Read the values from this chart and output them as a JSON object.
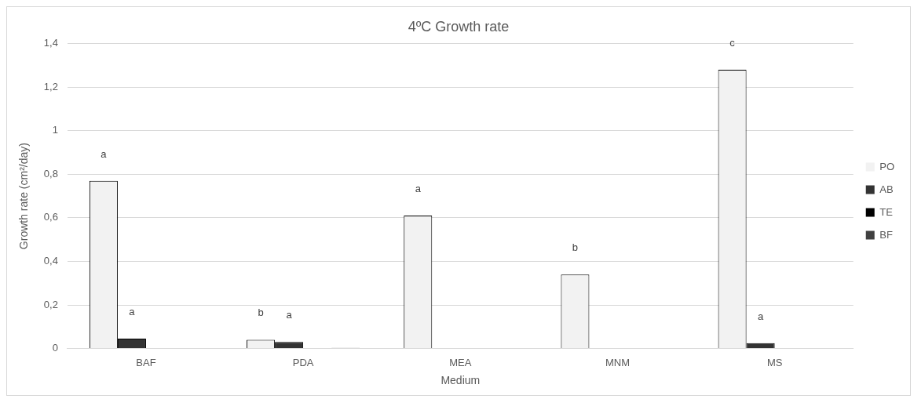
{
  "chart_data": {
    "type": "bar",
    "title": "4ºC Growth rate",
    "xlabel": "Medium",
    "ylabel": "Growth rate (cm²/day)",
    "categories": [
      "BAF",
      "PDA",
      "MEA",
      "MNM",
      "MS"
    ],
    "series": [
      {
        "name": "PO",
        "color": "#f2f2f2",
        "values": [
          0.77,
          0.04,
          0.61,
          0.34,
          1.28
        ],
        "value_labels": [
          "a",
          "b",
          "a",
          "b",
          "c"
        ]
      },
      {
        "name": "AB",
        "color": "#333333",
        "values": [
          0.045,
          0.03,
          0,
          0,
          0.025
        ],
        "value_labels": [
          "a",
          "a",
          null,
          null,
          "a"
        ]
      },
      {
        "name": "TE",
        "color": "#000000",
        "values": [
          0,
          0,
          0,
          0,
          0
        ]
      },
      {
        "name": "BF",
        "color": "#404040",
        "values": [
          0,
          0.003,
          0,
          0,
          0
        ]
      }
    ],
    "ylim": [
      0,
      1.4
    ],
    "yticks": [
      0,
      {
        "value": 0.2,
        "label": "0,2"
      },
      {
        "value": 0.4,
        "label": "0,4"
      },
      {
        "value": 0.6,
        "label": "0,6"
      },
      {
        "value": 0.8,
        "label": "0,8"
      },
      1,
      {
        "value": 1.2,
        "label": "1,2"
      },
      {
        "value": 1.4,
        "label": "1,4"
      }
    ],
    "grid": "y",
    "legend": "right"
  }
}
